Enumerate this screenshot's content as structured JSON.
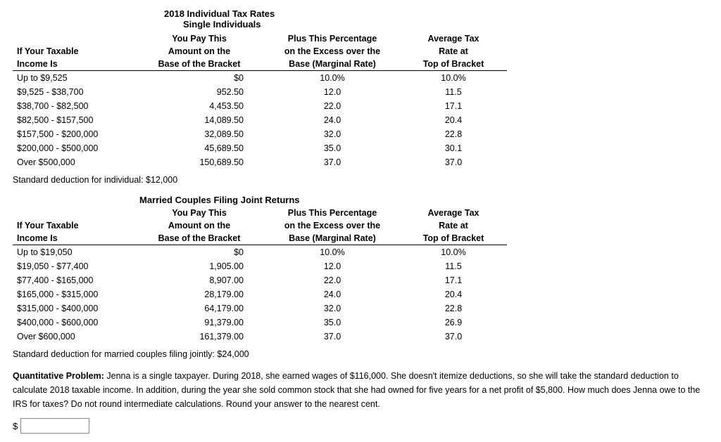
{
  "page": {
    "main_title": "2018 Individual Tax Rates",
    "single_subtitle": "Single Individuals",
    "married_subtitle": "Married Couples Filing Joint Returns"
  },
  "headers": {
    "col1a": "If Your Taxable",
    "col1b": "Income Is",
    "col2a": "You Pay This",
    "col2b": "Amount on the",
    "col2c": "Base of the Bracket",
    "col3a": "Plus This Percentage",
    "col3b": "on the Excess over the",
    "col3c": "Base (Marginal Rate)",
    "col4a": "Average Tax",
    "col4b": "Rate at",
    "col4c": "Top of Bracket"
  },
  "single": {
    "rows": [
      {
        "income": "Up to $9,525",
        "base": "$0",
        "rate": "10.0%",
        "avg": "10.0%"
      },
      {
        "income": "$9,525 - $38,700",
        "base": "952.50",
        "rate": "12.0",
        "avg": "11.5"
      },
      {
        "income": "$38,700 - $82,500",
        "base": "4,453.50",
        "rate": "22.0",
        "avg": "17.1"
      },
      {
        "income": "$82,500 - $157,500",
        "base": "14,089.50",
        "rate": "24.0",
        "avg": "20.4"
      },
      {
        "income": "$157,500 - $200,000",
        "base": "32,089.50",
        "rate": "32.0",
        "avg": "22.8"
      },
      {
        "income": "$200,000 - $500,000",
        "base": "45,689.50",
        "rate": "35.0",
        "avg": "30.1"
      },
      {
        "income": "Over $500,000",
        "base": "150,689.50",
        "rate": "37.0",
        "avg": "37.0"
      }
    ],
    "note": "Standard deduction for individual: $12,000"
  },
  "married": {
    "rows": [
      {
        "income": "Up to $19,050",
        "base": "$0",
        "rate": "10.0%",
        "avg": "10.0%"
      },
      {
        "income": "$19,050 - $77,400",
        "base": "1,905.00",
        "rate": "12.0",
        "avg": "11.5"
      },
      {
        "income": "$77,400 - $165,000",
        "base": "8,907.00",
        "rate": "22.0",
        "avg": "17.1"
      },
      {
        "income": "$165,000 - $315,000",
        "base": "28,179.00",
        "rate": "24.0",
        "avg": "20.4"
      },
      {
        "income": "$315,000 - $400,000",
        "base": "64,179.00",
        "rate": "32.0",
        "avg": "22.8"
      },
      {
        "income": "$400,000 - $600,000",
        "base": "91,379.00",
        "rate": "35.0",
        "avg": "26.9"
      },
      {
        "income": "Over $600,000",
        "base": "161,379.00",
        "rate": "37.0",
        "avg": "37.0"
      }
    ],
    "note": "Standard deduction for married couples filing jointly: $24,000"
  },
  "problem": {
    "label": "Quantitative Problem:",
    "text": " Jenna is a single taxpayer. During 2018, she earned wages of $116,000. She doesn't itemize deductions, so she will take the standard deduction to calculate 2018 taxable income. In addition, during the year she sold common stock that she had owned for five years for a net profit of $5,800. How much does Jenna owe to the IRS for taxes? Do not round intermediate calculations. Round your answer to the nearest cent.",
    "currency": "$"
  }
}
